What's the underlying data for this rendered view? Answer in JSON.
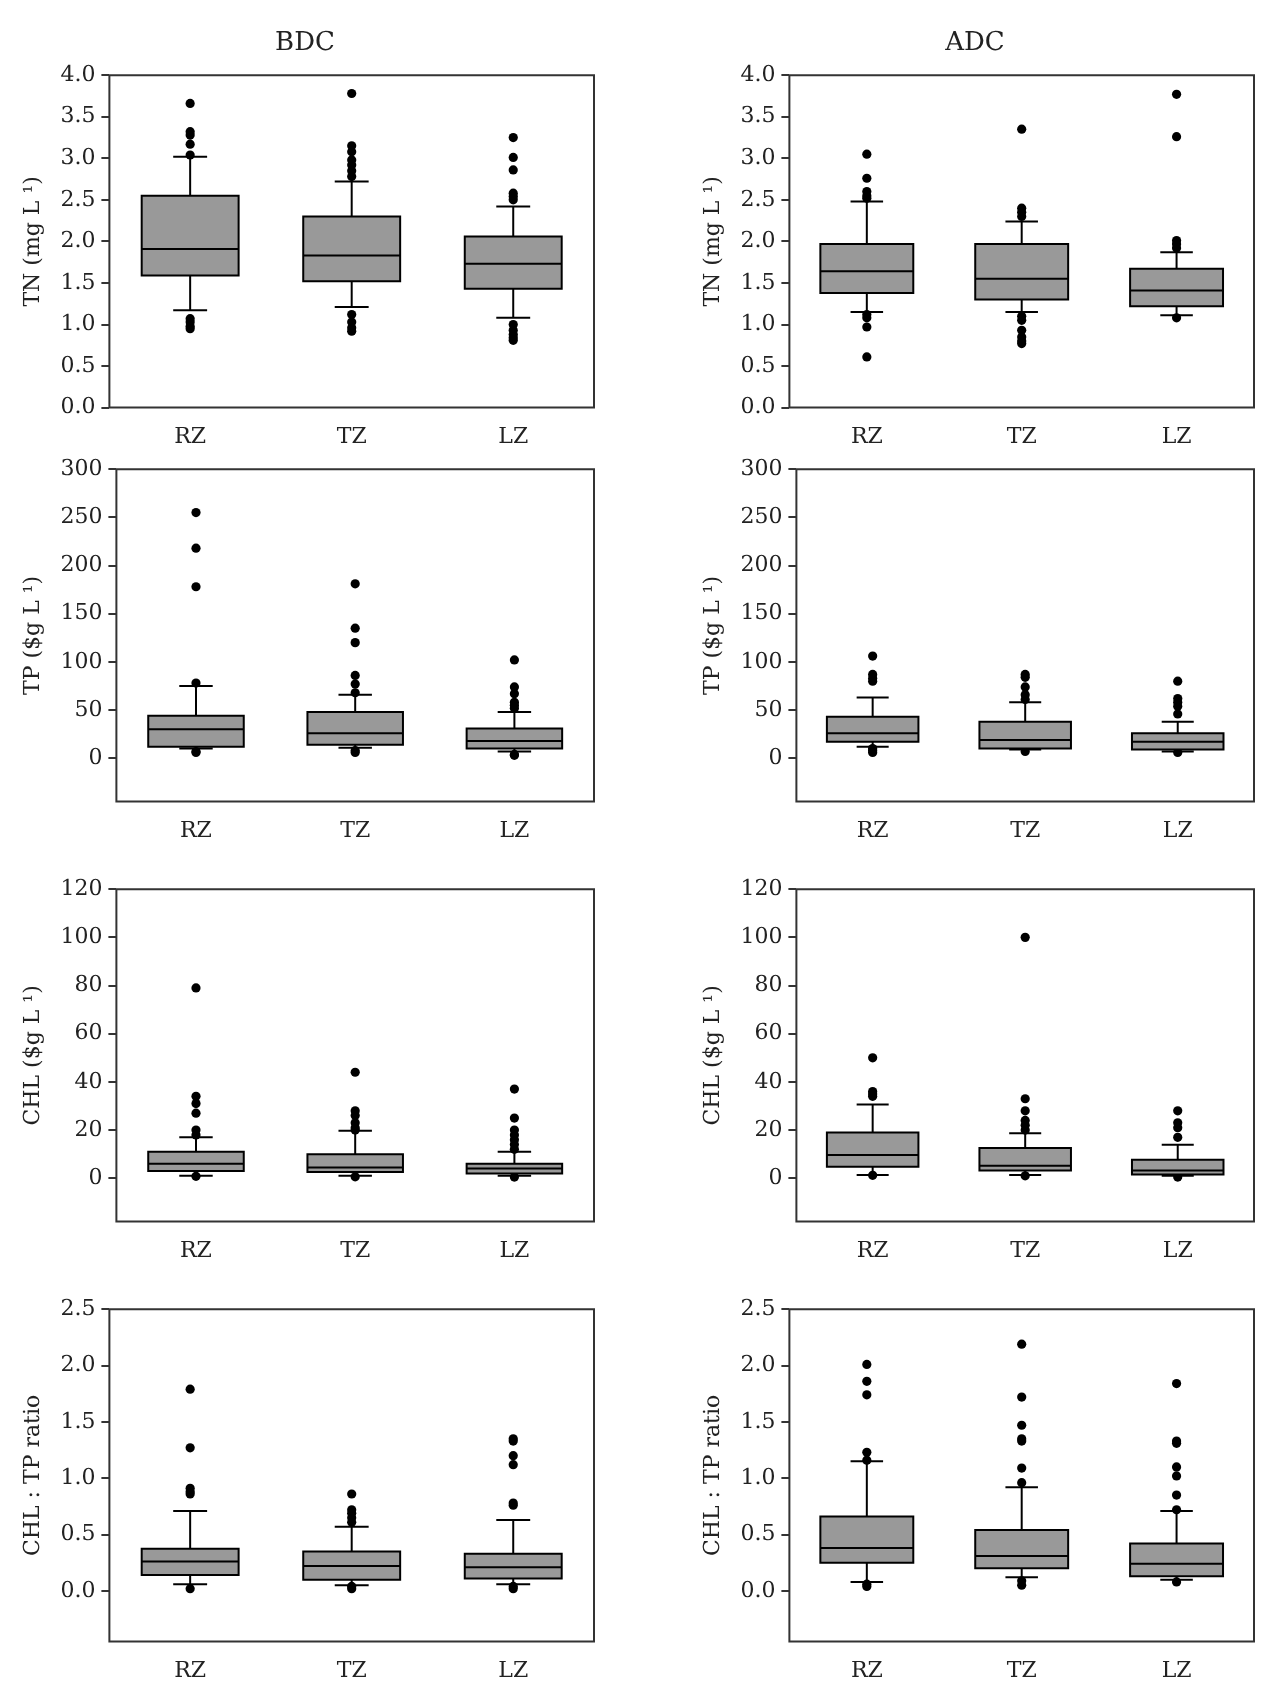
{
  "chart_data": [
    {
      "type": "box",
      "title": "BDC",
      "ylabel": "TN (mg L ¹)",
      "categories": [
        "RZ",
        "TZ",
        "LZ"
      ],
      "color": "#999999",
      "ylim": [
        0,
        4
      ],
      "yticks": [
        {
          "value": 0,
          "label": "0.0"
        },
        {
          "value": 0.5,
          "label": "0.5"
        },
        {
          "value": 1,
          "label": "1.0"
        },
        {
          "value": 1.5,
          "label": "1.5"
        },
        {
          "value": 2,
          "label": "2.0"
        },
        {
          "value": 2.5,
          "label": "2.5"
        },
        {
          "value": 3,
          "label": "3.0"
        },
        {
          "value": 3.5,
          "label": "3.5"
        },
        {
          "value": 4,
          "label": "4.0"
        }
      ],
      "grid": false,
      "legend": false,
      "boxes": [
        {
          "low": 1.17,
          "q1": 1.59,
          "median": 1.91,
          "q3": 2.55,
          "high": 3.02,
          "outliers": [
            3.66,
            3.32,
            3.28,
            3.17,
            3.04,
            1.07,
            1.03,
            0.98,
            0.95
          ]
        },
        {
          "low": 1.21,
          "q1": 1.52,
          "median": 1.83,
          "q3": 2.3,
          "high": 2.72,
          "outliers": [
            3.78,
            3.15,
            3.08,
            2.98,
            2.92,
            2.85,
            2.78,
            1.12,
            1.03,
            0.96,
            0.92
          ]
        },
        {
          "low": 1.08,
          "q1": 1.43,
          "median": 1.73,
          "q3": 2.06,
          "high": 2.42,
          "outliers": [
            3.25,
            3.01,
            2.86,
            2.58,
            2.54,
            2.5,
            1.0,
            0.93,
            0.88,
            0.84,
            0.81
          ]
        }
      ]
    },
    {
      "type": "box",
      "title": "ADC",
      "ylabel": "TN (mg L ¹)",
      "categories": [
        "RZ",
        "TZ",
        "LZ"
      ],
      "color": "#999999",
      "ylim": [
        0,
        4
      ],
      "yticks": [
        {
          "value": 0,
          "label": "0.0"
        },
        {
          "value": 0.5,
          "label": "0.5"
        },
        {
          "value": 1,
          "label": "1.0"
        },
        {
          "value": 1.5,
          "label": "1.5"
        },
        {
          "value": 2,
          "label": "2.0"
        },
        {
          "value": 2.5,
          "label": "2.5"
        },
        {
          "value": 3,
          "label": "3.0"
        },
        {
          "value": 3.5,
          "label": "3.5"
        },
        {
          "value": 4,
          "label": "4.0"
        }
      ],
      "grid": false,
      "legend": false,
      "boxes": [
        {
          "low": 1.15,
          "q1": 1.38,
          "median": 1.64,
          "q3": 1.97,
          "high": 2.48,
          "outliers": [
            3.05,
            2.76,
            2.6,
            2.55,
            2.52,
            1.12,
            1.08,
            0.97,
            0.61
          ]
        },
        {
          "low": 1.15,
          "q1": 1.3,
          "median": 1.55,
          "q3": 1.97,
          "high": 2.24,
          "outliers": [
            3.35,
            2.4,
            2.35,
            2.3,
            1.1,
            1.05,
            0.93,
            0.85,
            0.8,
            0.77
          ]
        },
        {
          "low": 1.11,
          "q1": 1.22,
          "median": 1.41,
          "q3": 1.67,
          "high": 1.87,
          "outliers": [
            3.77,
            3.26,
            2.01,
            1.97,
            1.92,
            1.08
          ]
        }
      ]
    },
    {
      "type": "box",
      "ylabel": "TP ($g L ¹)",
      "categories": [
        "RZ",
        "TZ",
        "LZ"
      ],
      "color": "#999999",
      "ylim": [
        -45,
        300
      ],
      "yticks": [
        0,
        50,
        100,
        150,
        200,
        250,
        300
      ],
      "grid": false,
      "legend": false,
      "boxes": [
        {
          "low": 10,
          "q1": 12,
          "median": 30,
          "q3": 44,
          "high": 75,
          "outliers": [
            255,
            218,
            178,
            78,
            7,
            6
          ]
        },
        {
          "low": 11,
          "q1": 14,
          "median": 26,
          "q3": 48,
          "high": 66,
          "outliers": [
            181,
            135,
            120,
            86,
            77,
            68,
            8,
            6
          ]
        },
        {
          "low": 7,
          "q1": 10,
          "median": 18,
          "q3": 31,
          "high": 48,
          "outliers": [
            102,
            74,
            67,
            58,
            55,
            52,
            4,
            3
          ]
        }
      ]
    },
    {
      "type": "box",
      "ylabel": "TP ($g L ¹)",
      "categories": [
        "RZ",
        "TZ",
        "LZ"
      ],
      "color": "#999999",
      "ylim": [
        -45,
        300
      ],
      "yticks": [
        0,
        50,
        100,
        150,
        200,
        250,
        300
      ],
      "grid": false,
      "legend": false,
      "boxes": [
        {
          "low": 12,
          "q1": 17,
          "median": 26,
          "q3": 43,
          "high": 63,
          "outliers": [
            106,
            87,
            83,
            80,
            10,
            8,
            6
          ]
        },
        {
          "low": 9,
          "q1": 10,
          "median": 19,
          "q3": 38,
          "high": 58,
          "outliers": [
            87,
            84,
            74,
            66,
            61,
            7
          ]
        },
        {
          "low": 7,
          "q1": 9,
          "median": 17,
          "q3": 26,
          "high": 38,
          "outliers": [
            80,
            62,
            58,
            54,
            46,
            6
          ]
        }
      ]
    },
    {
      "type": "box",
      "ylabel": "CHL ($g L ¹)",
      "categories": [
        "RZ",
        "TZ",
        "LZ"
      ],
      "color": "#999999",
      "ylim": [
        -18,
        120
      ],
      "yticks": [
        0,
        20,
        40,
        60,
        80,
        100,
        120
      ],
      "grid": false,
      "legend": false,
      "boxes": [
        {
          "low": 1,
          "q1": 3,
          "median": 6,
          "q3": 11,
          "high": 17,
          "outliers": [
            79,
            34,
            31,
            27,
            20,
            18,
            0.8
          ]
        },
        {
          "low": 1,
          "q1": 2.6,
          "median": 4.5,
          "q3": 10,
          "high": 19.7,
          "outliers": [
            44,
            28,
            26,
            23,
            21,
            20,
            0.6
          ]
        },
        {
          "low": 1,
          "q1": 2,
          "median": 4,
          "q3": 6,
          "high": 11,
          "outliers": [
            37,
            25,
            20,
            18,
            16,
            14,
            12,
            0.5
          ]
        }
      ]
    },
    {
      "type": "box",
      "ylabel": "CHL ($g L ¹)",
      "categories": [
        "RZ",
        "TZ",
        "LZ"
      ],
      "color": "#999999",
      "ylim": [
        -18,
        120
      ],
      "yticks": [
        0,
        20,
        40,
        60,
        80,
        100,
        120
      ],
      "grid": false,
      "legend": false,
      "boxes": [
        {
          "low": 1.3,
          "q1": 4.8,
          "median": 9.7,
          "q3": 19,
          "high": 30.6,
          "outliers": [
            50,
            36,
            35,
            34,
            1.2
          ]
        },
        {
          "low": 1.3,
          "q1": 3.2,
          "median": 5.2,
          "q3": 12.6,
          "high": 18.7,
          "outliers": [
            100,
            33,
            28,
            24,
            22,
            20,
            1
          ]
        },
        {
          "low": 1,
          "q1": 1.6,
          "median": 3.2,
          "q3": 7.7,
          "high": 13.9,
          "outliers": [
            28,
            23,
            21,
            17,
            0.5
          ]
        }
      ]
    },
    {
      "type": "box",
      "ylabel": "CHL : TP ratio",
      "categories": [
        "RZ",
        "TZ",
        "LZ"
      ],
      "color": "#999999",
      "ylim": [
        -0.45,
        2.5
      ],
      "yticks": [
        {
          "value": 0,
          "label": "0.0"
        },
        {
          "value": 0.5,
          "label": "0.5"
        },
        {
          "value": 1,
          "label": "1.0"
        },
        {
          "value": 1.5,
          "label": "1.5"
        },
        {
          "value": 2,
          "label": "2.0"
        },
        {
          "value": 2.5,
          "label": "2.5"
        }
      ],
      "grid": false,
      "legend": false,
      "boxes": [
        {
          "low": 0.06,
          "q1": 0.14,
          "median": 0.26,
          "q3": 0.375,
          "high": 0.71,
          "outliers": [
            1.79,
            1.27,
            0.91,
            0.88,
            0.86,
            0.02
          ]
        },
        {
          "low": 0.05,
          "q1": 0.1,
          "median": 0.22,
          "q3": 0.35,
          "high": 0.57,
          "outliers": [
            0.86,
            0.72,
            0.69,
            0.65,
            0.61,
            0.04,
            0.02
          ]
        },
        {
          "low": 0.06,
          "q1": 0.11,
          "median": 0.21,
          "q3": 0.33,
          "high": 0.63,
          "outliers": [
            1.35,
            1.33,
            1.2,
            1.12,
            0.78,
            0.76,
            0.04,
            0.02
          ]
        }
      ]
    },
    {
      "type": "box",
      "ylabel": "CHL : TP ratio",
      "categories": [
        "RZ",
        "TZ",
        "LZ"
      ],
      "color": "#999999",
      "ylim": [
        -0.45,
        2.5
      ],
      "yticks": [
        {
          "value": 0,
          "label": "0.0"
        },
        {
          "value": 0.5,
          "label": "0.5"
        },
        {
          "value": 1,
          "label": "1.0"
        },
        {
          "value": 1.5,
          "label": "1.5"
        },
        {
          "value": 2,
          "label": "2.0"
        },
        {
          "value": 2.5,
          "label": "2.5"
        }
      ],
      "grid": false,
      "legend": false,
      "boxes": [
        {
          "low": 0.08,
          "q1": 0.25,
          "median": 0.38,
          "q3": 0.66,
          "high": 1.15,
          "outliers": [
            2.01,
            1.86,
            1.74,
            1.23,
            1.16,
            0.06,
            0.04
          ]
        },
        {
          "low": 0.12,
          "q1": 0.2,
          "median": 0.31,
          "q3": 0.54,
          "high": 0.92,
          "outliers": [
            2.19,
            1.72,
            1.47,
            1.35,
            1.33,
            1.09,
            0.96,
            0.09,
            0.05
          ]
        },
        {
          "low": 0.1,
          "q1": 0.13,
          "median": 0.24,
          "q3": 0.42,
          "high": 0.71,
          "outliers": [
            1.84,
            1.33,
            1.31,
            1.1,
            1.02,
            0.85,
            0.72,
            0.08
          ]
        }
      ]
    }
  ]
}
